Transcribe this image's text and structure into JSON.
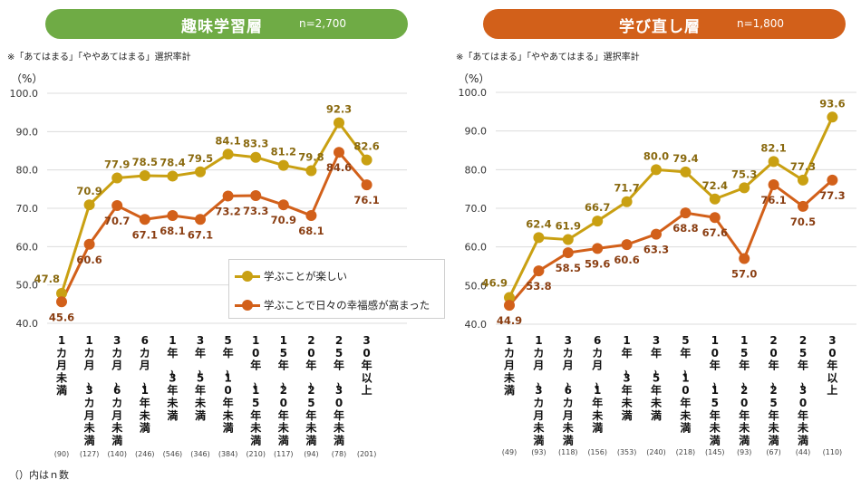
{
  "note": "※「あてはまる」「ややあてはまる」選択率計",
  "footnote": "（）内はｎ数",
  "legend": [
    {
      "label": "学ぶことが楽しい",
      "color": "#c9a012"
    },
    {
      "label": "学ぶことで日々の幸福感が高まった",
      "color": "#d2601a"
    }
  ],
  "chart_data": [
    {
      "type": "line",
      "title": "趣味学習層",
      "subtitle": "n=2,700",
      "banner_color": "#6fab45",
      "ylabel": "（%）",
      "ylim": [
        40,
        100
      ],
      "yticks": [
        "100.0",
        "90.0",
        "80.0",
        "70.0",
        "60.0",
        "50.0",
        "40.0"
      ],
      "grid": true,
      "legend_position": "bottom-right",
      "categories": [
        "1カ月未満",
        "1カ月～3カ月未満",
        "3カ月～6カ月未満",
        "6カ月～1年未満",
        "1年～3年未満",
        "3年～5年未満",
        "5年～10年未満",
        "10年～15年未満",
        "15年～20年未満",
        "20年～25年未満",
        "25年～30年未満",
        "30年以上"
      ],
      "n_counts": [
        "(90)",
        "(127)",
        "(140)",
        "(246)",
        "(546)",
        "(346)",
        "(384)",
        "(210)",
        "(117)",
        "(94)",
        "(78)",
        "(201)"
      ],
      "series": [
        {
          "name": "学ぶことが楽しい",
          "color": "#c9a012",
          "label_color": "#8a6a10",
          "values": [
            47.8,
            70.9,
            77.9,
            78.5,
            78.4,
            79.5,
            84.1,
            83.3,
            81.2,
            79.8,
            92.3,
            82.6
          ]
        },
        {
          "name": "学ぶことで日々の幸福感が高まった",
          "color": "#d2601a",
          "label_color": "#8a3e12",
          "values": [
            45.6,
            60.6,
            70.7,
            67.1,
            68.1,
            67.1,
            73.2,
            73.3,
            70.9,
            68.1,
            84.6,
            76.1
          ]
        }
      ]
    },
    {
      "type": "line",
      "title": "学び直し層",
      "subtitle": "n=1,800",
      "banner_color": "#d2601a",
      "ylabel": "（%）",
      "ylim": [
        40,
        100
      ],
      "yticks": [
        "100.0",
        "90.0",
        "80.0",
        "70.0",
        "60.0",
        "50.0",
        "40.0"
      ],
      "grid": true,
      "categories": [
        "1カ月未満",
        "1カ月～3カ月未満",
        "3カ月～6カ月未満",
        "6カ月～1年未満",
        "1年～3年未満",
        "3年～5年未満",
        "5年～10年未満",
        "10年～15年未満",
        "15年～20年未満",
        "20年～25年未満",
        "25年～30年未満",
        "30年以上"
      ],
      "n_counts": [
        "(49)",
        "(93)",
        "(118)",
        "(156)",
        "(353)",
        "(240)",
        "(218)",
        "(145)",
        "(93)",
        "(67)",
        "(44)",
        "(110)"
      ],
      "series": [
        {
          "name": "学ぶことが楽しい",
          "color": "#c9a012",
          "label_color": "#8a6a10",
          "values": [
            46.9,
            62.4,
            61.9,
            66.7,
            71.7,
            80.0,
            79.4,
            72.4,
            75.3,
            82.1,
            77.3,
            93.6
          ]
        },
        {
          "name": "学ぶことで日々の幸福感が高まった",
          "color": "#d2601a",
          "label_color": "#8a3e12",
          "values": [
            44.9,
            53.8,
            58.5,
            59.6,
            60.6,
            63.3,
            68.8,
            67.6,
            57.0,
            76.1,
            70.5,
            77.3
          ]
        }
      ]
    }
  ]
}
